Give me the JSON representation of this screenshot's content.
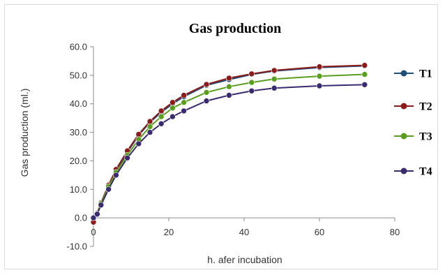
{
  "chart_data": {
    "type": "line",
    "title": "Gas production",
    "xlabel": "h. afer incubation",
    "ylabel": "Gas production (ml.)",
    "xlim": [
      0,
      80
    ],
    "ylim": [
      -10,
      60
    ],
    "x_ticks": [
      "0",
      "20",
      "40",
      "60",
      "80"
    ],
    "y_ticks": [
      "-10.0",
      "0.0",
      "10.0",
      "20.0",
      "30.0",
      "40.0",
      "50.0",
      "60.0"
    ],
    "grid": false,
    "legend_position": "right",
    "x": [
      0,
      1,
      2,
      4,
      6,
      9,
      12,
      15,
      18,
      21,
      24,
      30,
      36,
      42,
      48,
      60,
      72
    ],
    "series": [
      {
        "name": "T1",
        "color": "#1f4e79",
        "values": [
          -1.5,
          1.5,
          5.0,
          11.0,
          16.5,
          23.0,
          29.0,
          33.5,
          37.0,
          40.0,
          42.5,
          46.5,
          48.5,
          50.3,
          51.5,
          52.7,
          53.3
        ]
      },
      {
        "name": "T2",
        "color": "#8b1a1a",
        "values": [
          -1.5,
          1.7,
          5.3,
          11.5,
          17.0,
          23.5,
          29.3,
          33.8,
          37.5,
          40.5,
          43.0,
          46.8,
          49.0,
          50.5,
          51.7,
          53.0,
          53.5
        ]
      },
      {
        "name": "T3",
        "color": "#5a9e1f",
        "values": [
          0.0,
          1.5,
          5.0,
          11.0,
          16.0,
          22.0,
          27.5,
          32.0,
          35.5,
          38.5,
          40.5,
          44.0,
          46.0,
          47.5,
          48.7,
          49.7,
          50.3
        ]
      },
      {
        "name": "T4",
        "color": "#3a2a6e",
        "values": [
          0.0,
          1.3,
          4.5,
          10.0,
          15.0,
          21.0,
          26.0,
          30.0,
          33.0,
          35.5,
          37.5,
          41.0,
          43.0,
          44.5,
          45.5,
          46.3,
          46.7
        ]
      }
    ]
  }
}
